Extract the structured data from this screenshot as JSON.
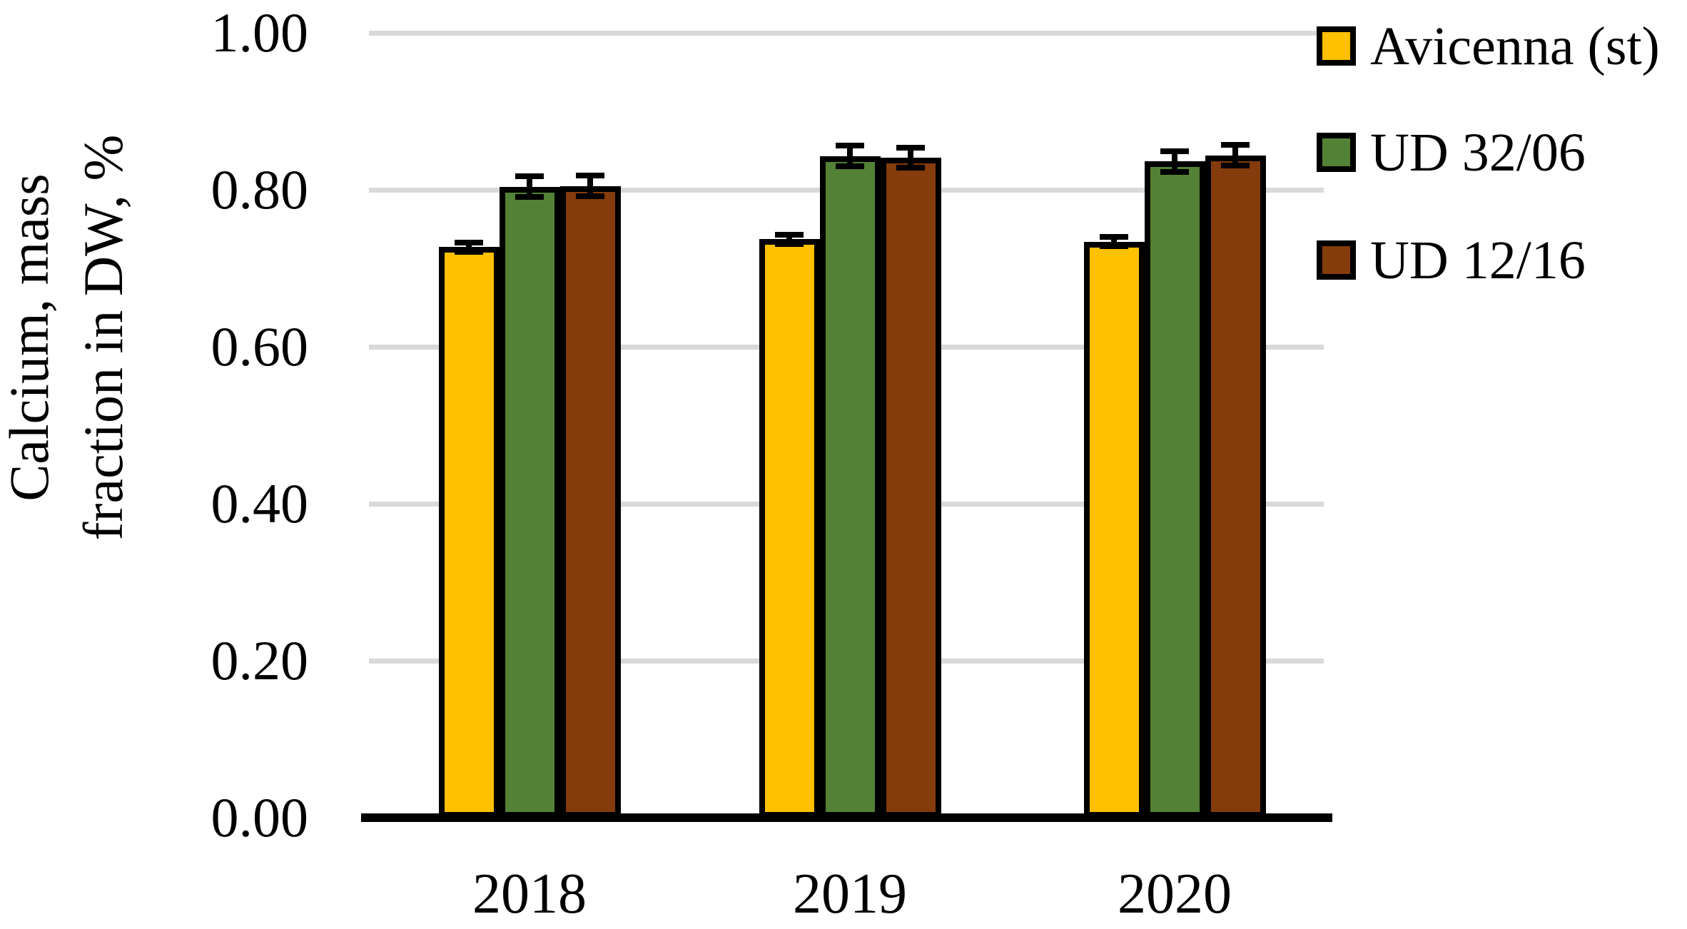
{
  "chart_data": {
    "type": "bar",
    "title": "",
    "ylabel_lines": [
      "Calcium, mass",
      "fraction in DW, %"
    ],
    "xlabel": "",
    "categories": [
      "2018",
      "2019",
      "2020"
    ],
    "series": [
      {
        "name": "Avicenna (st)",
        "color": "#FFC000",
        "values": [
          0.727,
          0.737,
          0.734
        ],
        "errors": [
          0.006,
          0.006,
          0.006
        ]
      },
      {
        "name": "UD 32/06",
        "color": "#538135",
        "values": [
          0.804,
          0.843,
          0.836
        ],
        "errors": [
          0.013,
          0.013,
          0.013
        ]
      },
      {
        "name": "UD 12/16",
        "color": "#843C0C",
        "values": [
          0.805,
          0.841,
          0.844
        ],
        "errors": [
          0.013,
          0.013,
          0.013
        ]
      }
    ],
    "error_bars": true,
    "ylim": [
      0.0,
      1.0
    ],
    "yticks": [
      {
        "value": 0.0,
        "label": "0.00"
      },
      {
        "value": 0.2,
        "label": "0.20"
      },
      {
        "value": 0.4,
        "label": "0.40"
      },
      {
        "value": 0.6,
        "label": "0.60"
      },
      {
        "value": 0.8,
        "label": "0.80"
      },
      {
        "value": 1.0,
        "label": "1.00"
      }
    ],
    "grid": true,
    "legend_position": "top-right",
    "colors": {
      "background": "#FFFFFF",
      "gridline": "#D9D9D9",
      "axis": "#000000",
      "bar_border": "#000000",
      "text": "#000000"
    }
  }
}
